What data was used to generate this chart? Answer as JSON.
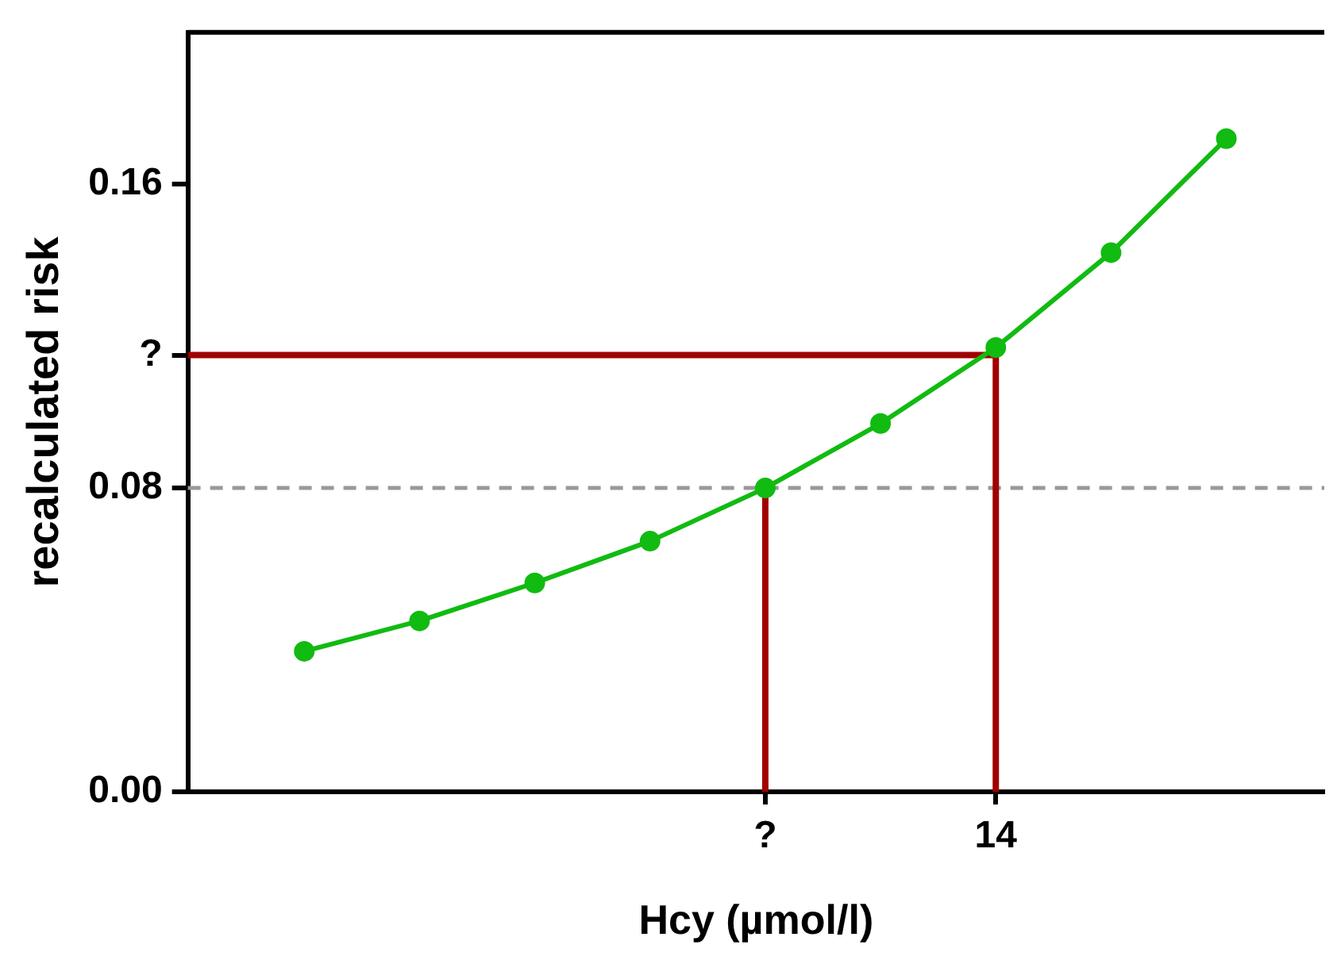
{
  "chart_data": {
    "type": "line",
    "xlabel": "Hcy (µmol/l)",
    "ylabel": "recalculated risk",
    "categories": [
      null,
      null,
      null,
      null,
      "?",
      null,
      "14",
      null,
      null
    ],
    "ylim": [
      0,
      0.2
    ],
    "yticks": [
      {
        "value": 0,
        "label": "0.00"
      },
      0.08,
      {
        "value": 0.115,
        "label": "?"
      },
      0.16
    ],
    "grid": false,
    "legend": false,
    "marker": "circle",
    "line_style": "solid",
    "series": [
      {
        "color": "#11bb11",
        "values": [
          0.037,
          0.045,
          0.055,
          0.066,
          0.08,
          0.097,
          0.117,
          0.142,
          0.172
        ]
      }
    ],
    "ref_lines": [
      {
        "axis": "y",
        "value": 0.08,
        "color": "#999999",
        "line_style": "dashed"
      },
      {
        "axis": "y",
        "value": 0.115,
        "color": "#a00000",
        "line_style": "solid"
      },
      {
        "axis": "x",
        "value": "?",
        "color": "#a00000",
        "line_style": "solid"
      },
      {
        "axis": "x",
        "value": "14",
        "color": "#a00000",
        "line_style": "solid"
      }
    ]
  }
}
